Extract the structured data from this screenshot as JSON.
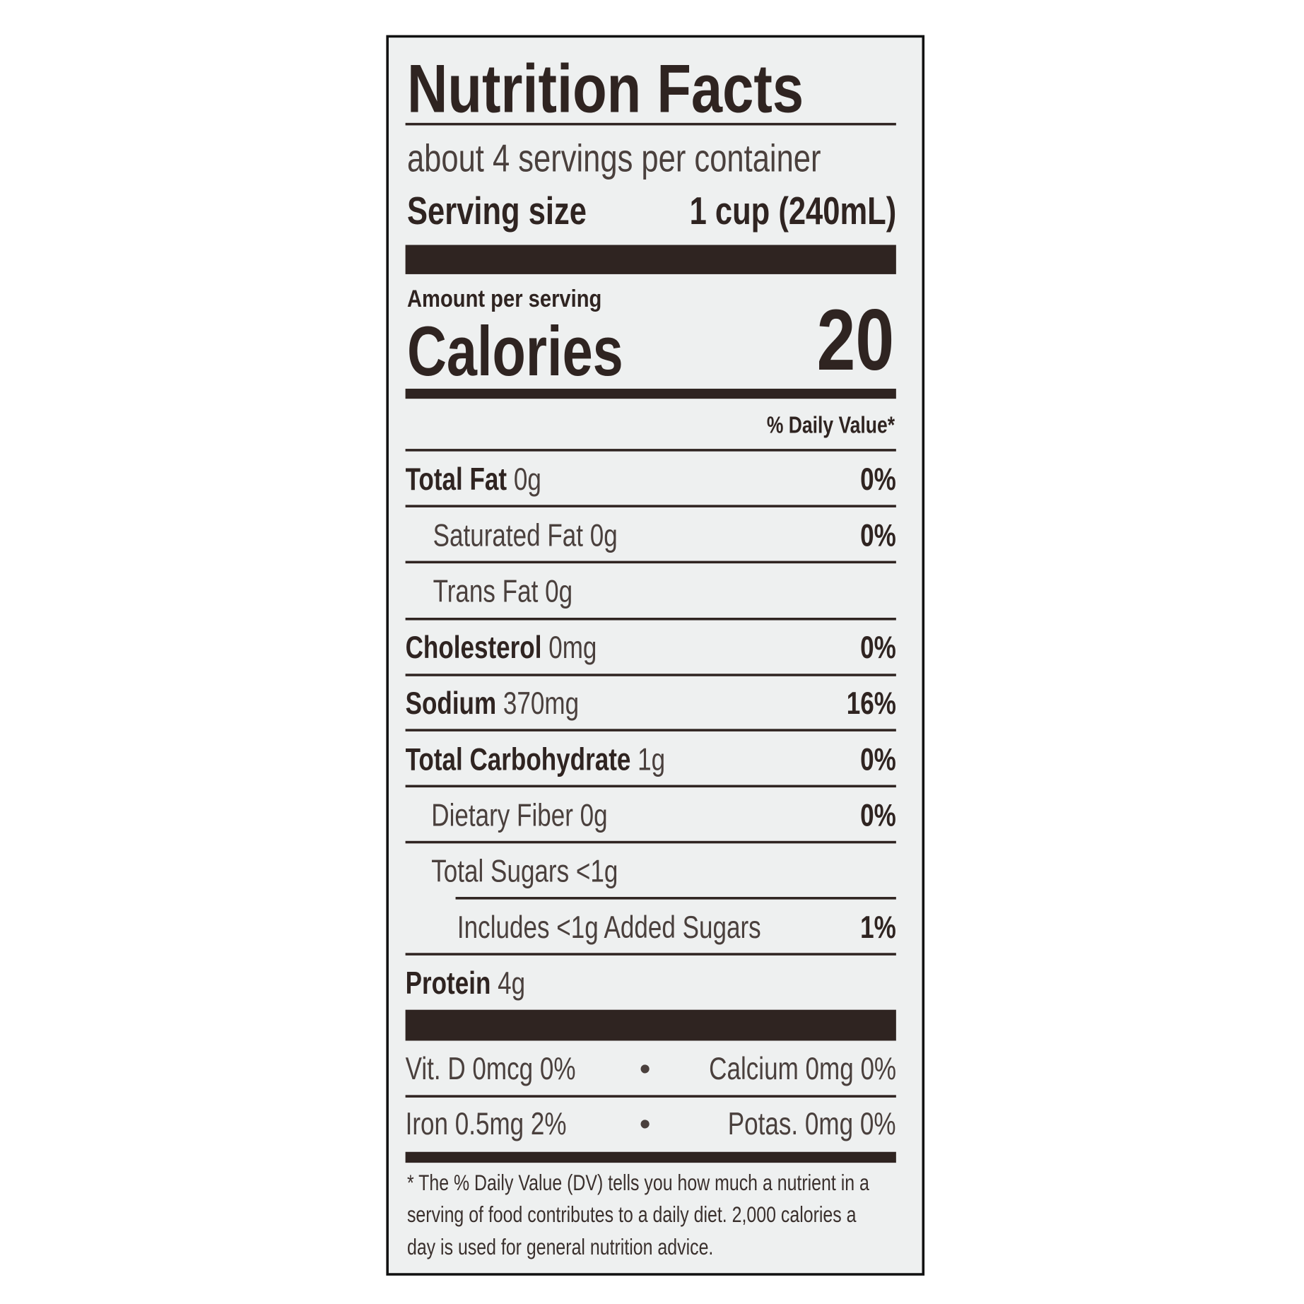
{
  "title": "Nutrition Facts",
  "servings_per_container": "about 4 servings per container",
  "serving_size_label": "Serving size",
  "serving_size_value": "1 cup (240mL)",
  "amount_per_serving": "Amount per serving",
  "calories_label": "Calories",
  "calories_value": "20",
  "daily_value_header": "% Daily Value*",
  "nutrients": [
    {
      "name": "Total Fat",
      "amount": "0g",
      "dv": "0%"
    },
    {
      "name": "Saturated Fat",
      "amount": "0g",
      "dv": "0%"
    },
    {
      "name": "Trans Fat",
      "amount": "0g",
      "dv": ""
    },
    {
      "name": "Cholesterol",
      "amount": "0mg",
      "dv": "0%"
    },
    {
      "name": "Sodium",
      "amount": "370mg",
      "dv": "16%"
    },
    {
      "name": "Total Carbohydrate",
      "amount": "1g",
      "dv": "0%"
    },
    {
      "name": "Dietary Fiber",
      "amount": "0g",
      "dv": "0%"
    },
    {
      "name": "Total Sugars",
      "amount": "<1g",
      "dv": ""
    },
    {
      "name": "Includes <1g Added Sugars",
      "amount": "",
      "dv": "1%"
    },
    {
      "name": "Protein",
      "amount": "4g",
      "dv": ""
    }
  ],
  "micronutrients": [
    {
      "left": "Vit. D 0mcg 0%",
      "right": "Calcium 0mg 0%"
    },
    {
      "left": "Iron 0.5mg 2%",
      "right": "Potas. 0mg 0%"
    }
  ],
  "bullet": "•",
  "footnote": [
    "* The % Daily Value (DV) tells you how much a nutrient in a",
    "serving of food contributes to a daily diet. 2,000 calories a",
    "day is used for general nutrition advice."
  ],
  "colors": {
    "ink": "#2f2421",
    "background": "#eef0f0",
    "border": "#111111"
  }
}
